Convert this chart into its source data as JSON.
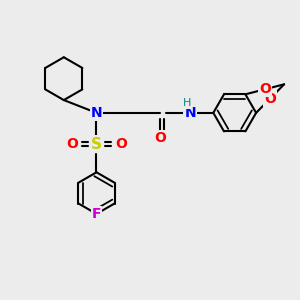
{
  "bg_color": "#ececec",
  "atom_colors": {
    "C": "#000000",
    "N": "#0000ff",
    "O": "#ff0000",
    "S": "#cccc00",
    "F": "#cc00cc",
    "H": "#008888"
  },
  "bond_color": "#000000",
  "bond_width": 1.5,
  "fig_size": [
    3.0,
    3.0
  ],
  "dpi": 100
}
